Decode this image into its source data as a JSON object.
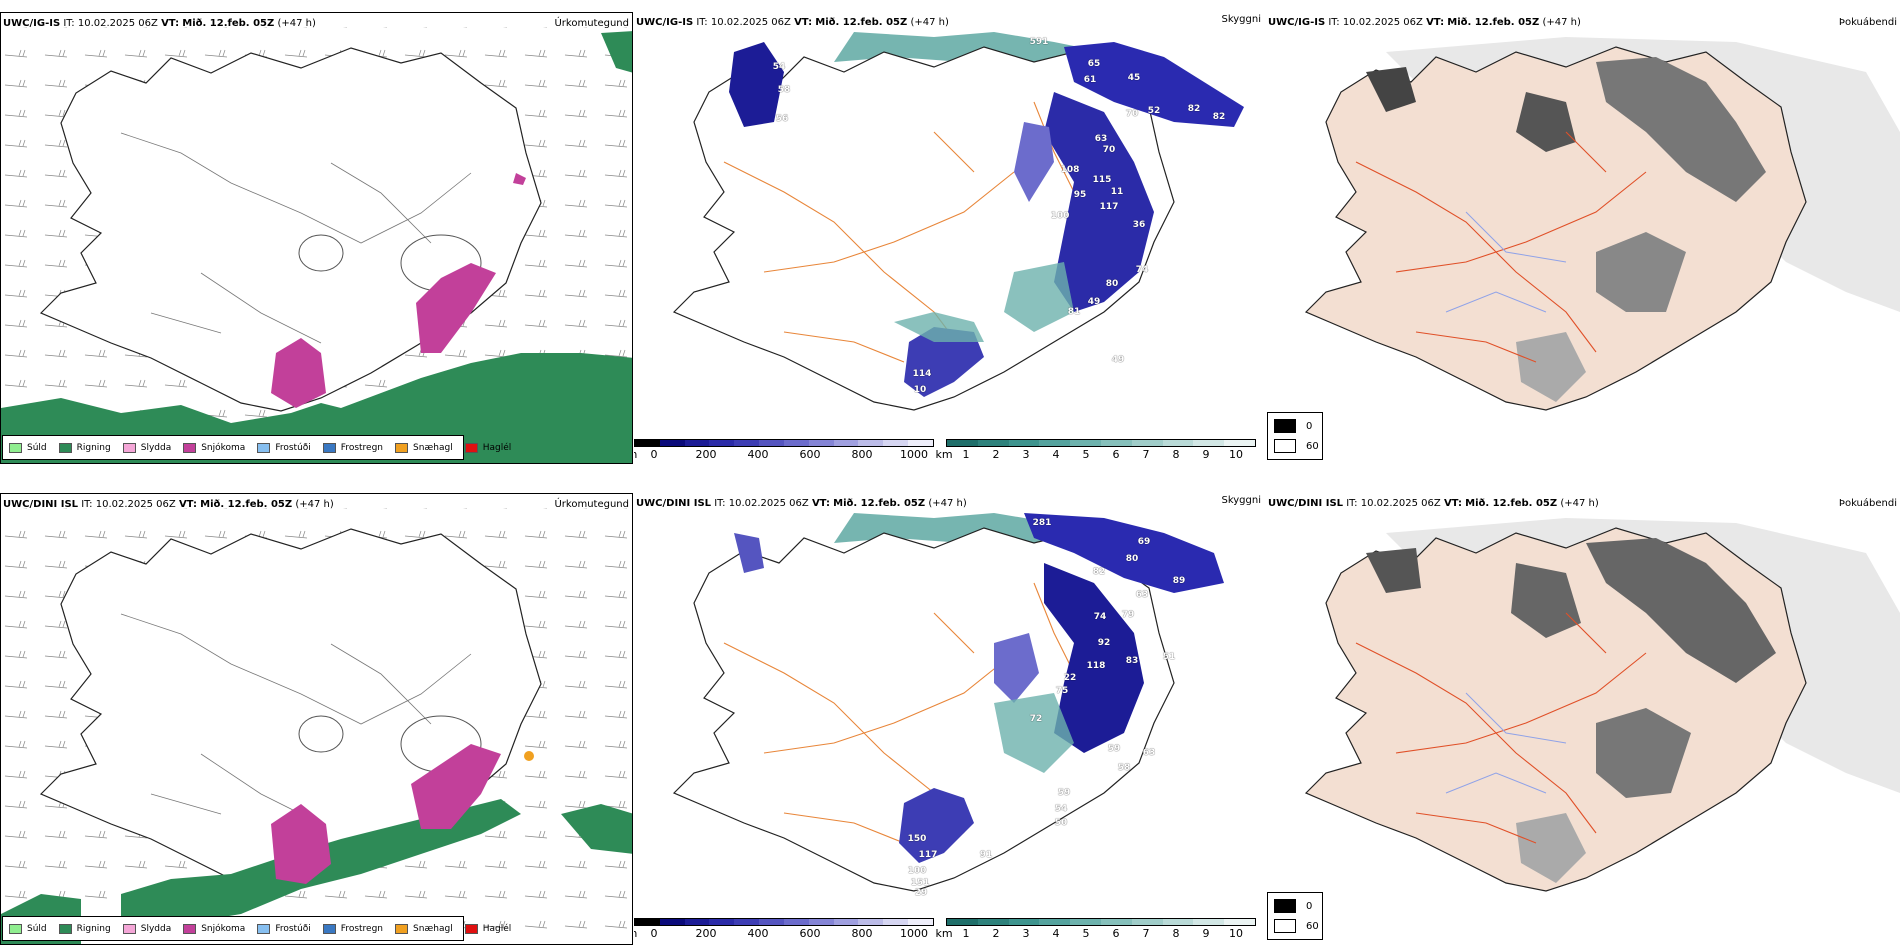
{
  "rows": [
    {
      "model": "UWC/IG-IS",
      "it_label": "IT:",
      "it_value": "10.02.2025 06Z",
      "vt_label": "VT:",
      "vt_value": "Mið. 12.feb. 05Z",
      "lead": "(+47 h)"
    },
    {
      "model": "UWC/DINI ISL",
      "it_label": "IT:",
      "it_value": "10.02.2025 06Z",
      "vt_label": "VT:",
      "vt_value": "Mið. 12.feb. 05Z",
      "lead": "(+47 h)"
    }
  ],
  "panel_types": {
    "precip": "Úrkomutegund",
    "cloud": "Skyggni",
    "fog": "Þokuábendi"
  },
  "precip_legend": [
    {
      "label": "Súld",
      "color": "#90ee90"
    },
    {
      "label": "Rigning",
      "color": "#2e8b57"
    },
    {
      "label": "Slydda",
      "color": "#f4a6d7"
    },
    {
      "label": "Snjókoma",
      "color": "#c2409a"
    },
    {
      "label": "Frostúði",
      "color": "#87bff0"
    },
    {
      "label": "Frostregn",
      "color": "#3a78c2"
    },
    {
      "label": "Snæhagl",
      "color": "#f0a020"
    },
    {
      "label": "Haglél",
      "color": "#e01010"
    }
  ],
  "colorbars": {
    "height_unit": "m",
    "height_ticks": [
      "0",
      "200",
      "400",
      "600",
      "800",
      "1000"
    ],
    "height_colors": [
      "#000000",
      "#0a0a7a",
      "#1c1c96",
      "#2b2ba8",
      "#3d3db4",
      "#5555c0",
      "#6c6ccc",
      "#8585d6",
      "#a0a0e0",
      "#bcbce8",
      "#d6d6f2",
      "#eeeefa"
    ],
    "dist_unit": "km",
    "dist_ticks": [
      "1",
      "2",
      "3",
      "4",
      "5",
      "6",
      "7",
      "8",
      "9",
      "10"
    ],
    "dist_colors": [
      "#1f6f6a",
      "#2e827c",
      "#3e948e",
      "#55a39e",
      "#6db2ad",
      "#86c0bb",
      "#a0cdc9",
      "#b9dad7",
      "#d2e7e5",
      "#ebf4f3"
    ]
  },
  "fog_legend": [
    {
      "label": "0",
      "color": "#000000"
    },
    {
      "label": "60",
      "color": "#ffffff"
    }
  ],
  "cloud_labels_top": [
    "591",
    "65",
    "61",
    "45",
    "54",
    "58",
    "56",
    "82",
    "82",
    "70",
    "52",
    "63",
    "70",
    "115",
    "95",
    "108",
    "100",
    "117",
    "11",
    "36",
    "74",
    "80",
    "49",
    "81",
    "49",
    "114",
    "10"
  ],
  "cloud_labels_bottom": [
    "281",
    "69",
    "80",
    "82",
    "89",
    "63",
    "74",
    "79",
    "92",
    "83",
    "51",
    "118",
    "75",
    "22",
    "72",
    "59",
    "63",
    "58",
    "59",
    "54",
    "50",
    "150",
    "117",
    "100",
    "91",
    "151",
    "29"
  ]
}
